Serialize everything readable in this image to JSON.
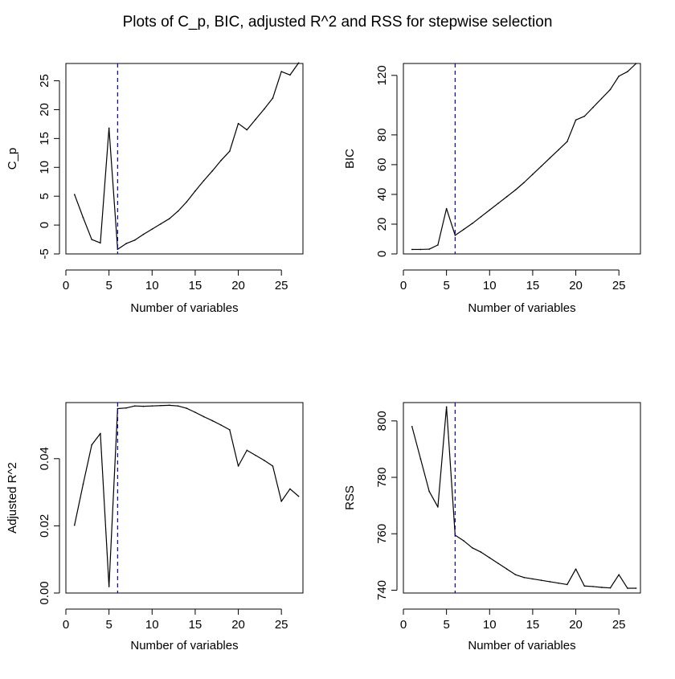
{
  "title": "Plots of C_p, BIC, adjusted R^2 and RSS for stepwise selection",
  "chart_data": [
    {
      "type": "line",
      "ylabel": "C_p",
      "xlabel": "Number of variables",
      "xlim": [
        0,
        27.5
      ],
      "ylim": [
        -5,
        28
      ],
      "xticks": [
        0,
        5,
        10,
        15,
        20,
        25
      ],
      "yticks": [
        -5,
        0,
        5,
        10,
        15,
        20,
        25
      ],
      "ytick_labels": [
        "-5",
        "0",
        "5",
        "10",
        "15",
        "20",
        "25"
      ],
      "vline_x": 6,
      "vline_color": "#0000cd",
      "line_color": "#000000",
      "x": [
        1,
        2,
        3,
        4,
        5,
        6,
        7,
        8,
        9,
        10,
        11,
        12,
        13,
        14,
        15,
        16,
        17,
        18,
        19,
        20,
        21,
        22,
        23,
        24,
        25,
        26,
        27
      ],
      "y": [
        5.3,
        1.3,
        -2.5,
        -3.1,
        16.8,
        -4.2,
        -3.2,
        -2.6,
        -1.6,
        -0.7,
        0.2,
        1.1,
        2.4,
        4.0,
        5.9,
        7.7,
        9.4,
        11.2,
        12.8,
        17.6,
        16.5,
        18.3,
        20.1,
        22.0,
        26.6,
        26.0,
        28.1
      ]
    },
    {
      "type": "line",
      "ylabel": "BIC",
      "xlabel": "Number of variables",
      "xlim": [
        0,
        27.5
      ],
      "ylim": [
        0,
        128
      ],
      "xticks": [
        0,
        5,
        10,
        15,
        20,
        25
      ],
      "yticks": [
        0,
        20,
        40,
        60,
        80,
        120
      ],
      "ytick_labels": [
        "0",
        "20",
        "40",
        "60",
        "80",
        "120"
      ],
      "vline_x": 6,
      "vline_color": "#0000cd",
      "line_color": "#000000",
      "x": [
        1,
        2,
        3,
        4,
        5,
        6,
        7,
        8,
        9,
        10,
        11,
        12,
        13,
        14,
        15,
        16,
        17,
        18,
        19,
        20,
        21,
        22,
        23,
        24,
        25,
        26,
        27
      ],
      "y": [
        3,
        3,
        3.2,
        6,
        30.5,
        12.5,
        16.5,
        20.5,
        25,
        29.5,
        34,
        38.5,
        43,
        48,
        53.5,
        59,
        64.5,
        70,
        75.5,
        90,
        92.5,
        98.5,
        104.5,
        110.5,
        119.5,
        122.5,
        128
      ]
    },
    {
      "type": "line",
      "ylabel": "Adjusted R^2",
      "xlabel": "Number of variables",
      "xlim": [
        0,
        27.5
      ],
      "ylim": [
        0,
        0.0567
      ],
      "xticks": [
        0,
        5,
        10,
        15,
        20,
        25
      ],
      "yticks": [
        0,
        0.02,
        0.04
      ],
      "ytick_labels": [
        "0.00",
        "0.02",
        "0.04"
      ],
      "vline_x": 6,
      "vline_color": "#0000cd",
      "line_color": "#000000",
      "x": [
        1,
        2,
        3,
        4,
        5,
        6,
        7,
        8,
        9,
        10,
        11,
        12,
        13,
        14,
        15,
        16,
        17,
        18,
        19,
        20,
        21,
        22,
        23,
        24,
        25,
        26,
        27
      ],
      "y": [
        0.0202,
        0.0324,
        0.0441,
        0.0475,
        0.0019,
        0.0549,
        0.0551,
        0.0557,
        0.0556,
        0.0557,
        0.0558,
        0.0559,
        0.0557,
        0.055,
        0.0538,
        0.0525,
        0.0513,
        0.05,
        0.0486,
        0.0378,
        0.0425,
        0.041,
        0.0395,
        0.0378,
        0.0273,
        0.031,
        0.0288
      ]
    },
    {
      "type": "line",
      "ylabel": "RSS",
      "xlabel": "Number of variables",
      "xlim": [
        0,
        27.5
      ],
      "ylim": [
        739,
        806.5
      ],
      "xticks": [
        0,
        5,
        10,
        15,
        20,
        25
      ],
      "yticks": [
        740,
        760,
        780,
        800
      ],
      "ytick_labels": [
        "740",
        "760",
        "780",
        "800"
      ],
      "vline_x": 6,
      "vline_color": "#0000cd",
      "line_color": "#000000",
      "x": [
        1,
        2,
        3,
        4,
        5,
        6,
        7,
        8,
        9,
        10,
        11,
        12,
        13,
        14,
        15,
        16,
        17,
        18,
        19,
        20,
        21,
        22,
        23,
        24,
        25,
        26,
        27
      ],
      "y": [
        798,
        786.5,
        775,
        769.5,
        805,
        759.5,
        757.5,
        755,
        753.5,
        751.5,
        749.5,
        747.5,
        745.5,
        744.5,
        744,
        743.5,
        743,
        742.5,
        742,
        747.5,
        741.5,
        741.3,
        741,
        740.8,
        745.5,
        740.7,
        740.7
      ]
    }
  ]
}
